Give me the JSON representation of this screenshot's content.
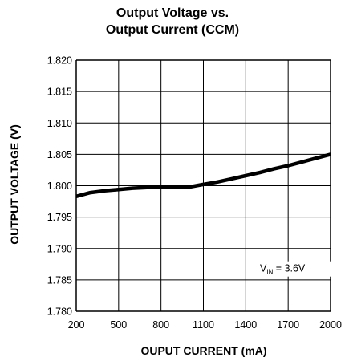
{
  "chart_data": {
    "type": "line",
    "title": [
      "Output Voltage vs.",
      "Output Current (CCM)"
    ],
    "xlabel": "OUPUT CURRENT (mA)",
    "ylabel": "OUTPUT VOLTAGE (V)",
    "xlim": [
      200,
      2000
    ],
    "ylim": [
      1.78,
      1.82
    ],
    "xticks": [
      "200",
      "500",
      "800",
      "1100",
      "1400",
      "1700",
      "2000"
    ],
    "yticks": [
      "1.820",
      "1.815",
      "1.810",
      "1.805",
      "1.800",
      "1.795",
      "1.790",
      "1.785",
      "1.780"
    ],
    "grid": true,
    "annotation": {
      "main": "V",
      "sub": "IN",
      "rest": " = 3.6V"
    },
    "series": [
      {
        "x": [
          200,
          300,
          400,
          500,
          600,
          700,
          800,
          900,
          1000,
          1100,
          1200,
          1300,
          1400,
          1500,
          1600,
          1700,
          1800,
          1900,
          2000
        ],
        "values": [
          1.7983,
          1.7989,
          1.7992,
          1.7994,
          1.7996,
          1.7997,
          1.7997,
          1.7997,
          1.7998,
          1.8002,
          1.8006,
          1.8011,
          1.8016,
          1.8021,
          1.8027,
          1.8032,
          1.8038,
          1.8044,
          1.805
        ]
      }
    ],
    "colors": {
      "line": "#000000",
      "grid": "#000000"
    }
  }
}
